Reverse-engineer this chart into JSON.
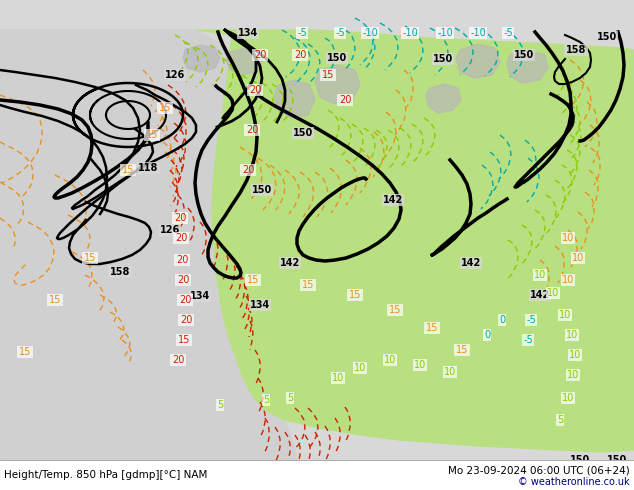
{
  "title_left": "Height/Temp. 850 hPa [gdmp][°C] NAM",
  "title_right": "Mo 23-09-2024 06:00 UTC (06+24)",
  "credit": "© weatheronline.co.uk",
  "bg_color": "#d8d8d8",
  "green_fill_color": "#b8e080",
  "light_green": "#c8e890",
  "fig_width": 6.34,
  "fig_height": 4.9,
  "dpi": 100,
  "font_size_labels": 7,
  "font_size_title": 7.5,
  "font_size_credit": 7,
  "orange_color": "#e89020",
  "red_color": "#cc2200",
  "cyan_color": "#00aaaa",
  "lime_color": "#88cc00",
  "black_lw": 2.0,
  "contour_lw": 1.2
}
